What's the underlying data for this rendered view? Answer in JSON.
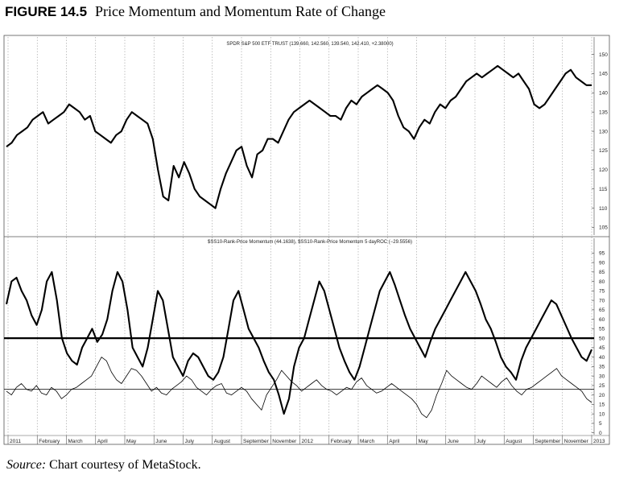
{
  "figure": {
    "number": "FIGURE 14.5",
    "title": "Price Momentum and Momentum Rate of Change"
  },
  "source": {
    "label": "Source:",
    "text": "Chart courtesy of MetaStock."
  },
  "chart_data": [
    {
      "type": "line",
      "title": "SPDR S&P 500 ETF TRUST (139.660, 142.560, 139.540, 142.410, +2.38000)",
      "ylim": [
        103,
        152
      ],
      "y_ticks": [
        105,
        110,
        115,
        120,
        125,
        130,
        135,
        140,
        145,
        150
      ],
      "grid": "vertical dotted at month boundaries",
      "series": [
        {
          "values": [
            126,
            127,
            129,
            130,
            131,
            133,
            134,
            135,
            132,
            133,
            134,
            135,
            137,
            136,
            135,
            133,
            134,
            130,
            129,
            128,
            127,
            129,
            130,
            133,
            135,
            134,
            133,
            132,
            128,
            120,
            113,
            112,
            121,
            118,
            122,
            119,
            115,
            113,
            112,
            111,
            110,
            115,
            119,
            122,
            125,
            126,
            121,
            118,
            124,
            125,
            128,
            128,
            127,
            130,
            133,
            135,
            136,
            137,
            138,
            137,
            136,
            135,
            134,
            134,
            133,
            136,
            138,
            137,
            139,
            140,
            141,
            142,
            141,
            140,
            138,
            134,
            131,
            130,
            128,
            131,
            133,
            132,
            135,
            137,
            136,
            138,
            139,
            141,
            143,
            144,
            145,
            144,
            145,
            146,
            147,
            146,
            145,
            144,
            145,
            143,
            141,
            137,
            136,
            137,
            139,
            141,
            143,
            145,
            146,
            144,
            143,
            142,
            142
          ]
        }
      ]
    },
    {
      "type": "line",
      "title": "$SS10-Rank-Price Momentum (44.1638), $SS10-Rank-Price Momentum 5 dayROC (−29.5556)",
      "ylim": [
        -1,
        96
      ],
      "y_ticks": [
        0,
        5,
        10,
        15,
        20,
        25,
        30,
        35,
        40,
        45,
        50,
        55,
        60,
        65,
        70,
        75,
        80,
        85,
        90,
        95
      ],
      "reference_lines": [
        50,
        23
      ],
      "x_labels": [
        "2011",
        "February",
        "March",
        "April",
        "May",
        "June",
        "July",
        "August",
        "September",
        "November",
        "2012",
        "February",
        "March",
        "April",
        "May",
        "June",
        "July",
        "August",
        "September",
        "November",
        "2013"
      ],
      "series": [
        {
          "style": "thick",
          "values": [
            68,
            80,
            82,
            75,
            70,
            62,
            57,
            65,
            80,
            85,
            70,
            50,
            42,
            38,
            36,
            45,
            50,
            55,
            48,
            52,
            60,
            75,
            85,
            80,
            65,
            45,
            40,
            35,
            45,
            60,
            75,
            70,
            55,
            40,
            35,
            30,
            38,
            42,
            40,
            35,
            30,
            28,
            32,
            40,
            55,
            70,
            75,
            65,
            55,
            50,
            45,
            38,
            32,
            28,
            20,
            10,
            18,
            35,
            45,
            50,
            60,
            70,
            80,
            75,
            65,
            55,
            45,
            38,
            32,
            28,
            35,
            45,
            55,
            65,
            75,
            80,
            85,
            78,
            70,
            62,
            55,
            50,
            45,
            40,
            48,
            55,
            60,
            65,
            70,
            75,
            80,
            85,
            80,
            75,
            68,
            60,
            55,
            48,
            40,
            35,
            32,
            28,
            38,
            45,
            50,
            55,
            60,
            65,
            70,
            68,
            62,
            56,
            50,
            45,
            40,
            38,
            44
          ]
        },
        {
          "style": "thin",
          "values": [
            22,
            20,
            24,
            26,
            23,
            22,
            25,
            21,
            20,
            24,
            22,
            18,
            20,
            23,
            24,
            26,
            28,
            30,
            35,
            40,
            38,
            32,
            28,
            26,
            30,
            34,
            33,
            30,
            26,
            22,
            24,
            21,
            20,
            23,
            25,
            27,
            30,
            28,
            24,
            22,
            20,
            23,
            25,
            26,
            21,
            20,
            22,
            24,
            22,
            18,
            15,
            12,
            20,
            24,
            28,
            33,
            30,
            27,
            25,
            22,
            24,
            26,
            28,
            25,
            23,
            22,
            20,
            22,
            24,
            23,
            27,
            29,
            25,
            23,
            21,
            22,
            24,
            26,
            24,
            22,
            20,
            18,
            15,
            10,
            8,
            12,
            20,
            26,
            33,
            30,
            28,
            26,
            24,
            23,
            26,
            30,
            28,
            26,
            24,
            27,
            29,
            25,
            22,
            20,
            23,
            24,
            26,
            28,
            30,
            32,
            34,
            30,
            28,
            26,
            24,
            22,
            18,
            16
          ]
        }
      ]
    }
  ]
}
